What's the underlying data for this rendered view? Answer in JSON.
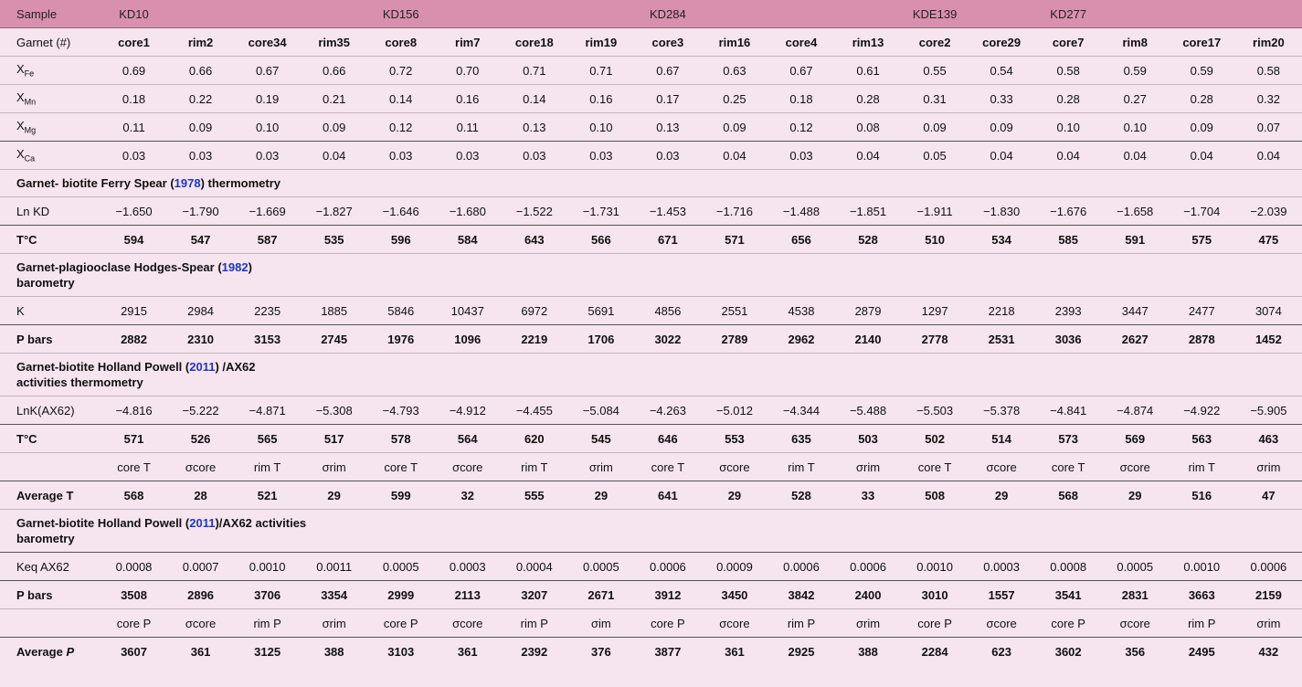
{
  "header": {
    "sample_label": "Sample",
    "samples": [
      {
        "name": "KD10",
        "col": 1
      },
      {
        "name": "KD156",
        "col": 5
      },
      {
        "name": "KD284",
        "col": 9
      },
      {
        "name": "KDE139",
        "col": 13
      },
      {
        "name": "KD277",
        "col": 15
      }
    ]
  },
  "garnet_label": "Garnet (#)",
  "garnets": [
    "core1",
    "rim2",
    "core34",
    "rim35",
    "core8",
    "rim7",
    "core18",
    "rim19",
    "core3",
    "rim16",
    "core4",
    "rim13",
    "core2",
    "core29",
    "core7",
    "rim8",
    "core17",
    "rim20"
  ],
  "comp_rows": [
    {
      "sym": "X",
      "sub": "Fe",
      "values": [
        "0.69",
        "0.66",
        "0.67",
        "0.66",
        "0.72",
        "0.70",
        "0.71",
        "0.71",
        "0.67",
        "0.63",
        "0.67",
        "0.61",
        "0.55",
        "0.54",
        "0.58",
        "0.59",
        "0.59",
        "0.58"
      ]
    },
    {
      "sym": "X",
      "sub": "Mn",
      "values": [
        "0.18",
        "0.22",
        "0.19",
        "0.21",
        "0.14",
        "0.16",
        "0.14",
        "0.16",
        "0.17",
        "0.25",
        "0.18",
        "0.28",
        "0.31",
        "0.33",
        "0.28",
        "0.27",
        "0.28",
        "0.32"
      ]
    },
    {
      "sym": "X",
      "sub": "Mg",
      "values": [
        "0.11",
        "0.09",
        "0.10",
        "0.09",
        "0.12",
        "0.11",
        "0.13",
        "0.10",
        "0.13",
        "0.09",
        "0.12",
        "0.08",
        "0.09",
        "0.09",
        "0.10",
        "0.10",
        "0.09",
        "0.07"
      ]
    },
    {
      "sym": "X",
      "sub": "Ca",
      "values": [
        "0.03",
        "0.03",
        "0.03",
        "0.04",
        "0.03",
        "0.03",
        "0.03",
        "0.03",
        "0.03",
        "0.04",
        "0.03",
        "0.04",
        "0.05",
        "0.04",
        "0.04",
        "0.04",
        "0.04",
        "0.04"
      ]
    }
  ],
  "sections": {
    "s1": {
      "pre": "Garnet- biotite Ferry Spear (",
      "ref": "1978",
      "post": ") thermometry"
    },
    "s2": {
      "pre": "Garnet-plagiooclase Hodges-Spear (",
      "ref": "1982",
      "post": ") barometry"
    },
    "s3": {
      "pre": "Garnet-biotite Holland Powell (",
      "ref": "2011",
      "post": ") /AX62 activities thermometry"
    },
    "s4": {
      "pre": "Garnet-biotite Holland Powell (",
      "ref": "2011",
      "post": ")/AX62 activities barometry"
    }
  },
  "rows": {
    "lnkd": {
      "label": "Ln KD",
      "values": [
        "−1.650",
        "−1.790",
        "−1.669",
        "−1.827",
        "−1.646",
        "−1.680",
        "−1.522",
        "−1.731",
        "−1.453",
        "−1.716",
        "−1.488",
        "−1.851",
        "−1.911",
        "−1.830",
        "−1.676",
        "−1.658",
        "−1.704",
        "−2.039"
      ]
    },
    "t1": {
      "label": "T°C",
      "values": [
        "594",
        "547",
        "587",
        "535",
        "596",
        "584",
        "643",
        "566",
        "671",
        "571",
        "656",
        "528",
        "510",
        "534",
        "585",
        "591",
        "575",
        "475"
      ]
    },
    "k": {
      "label": "K",
      "values": [
        "2915",
        "2984",
        "2235",
        "1885",
        "5846",
        "10437",
        "6972",
        "5691",
        "4856",
        "2551",
        "4538",
        "2879",
        "1297",
        "2218",
        "2393",
        "3447",
        "2477",
        "3074"
      ]
    },
    "p1": {
      "label": "P bars",
      "values": [
        "2882",
        "2310",
        "3153",
        "2745",
        "1976",
        "1096",
        "2219",
        "1706",
        "3022",
        "2789",
        "2962",
        "2140",
        "2778",
        "2531",
        "3036",
        "2627",
        "2878",
        "1452"
      ]
    },
    "lnk": {
      "label": "LnK(AX62)",
      "values": [
        "−4.816",
        "−5.222",
        "−4.871",
        "−5.308",
        "−4.793",
        "−4.912",
        "−4.455",
        "−5.084",
        "−4.263",
        "−5.012",
        "−4.344",
        "−5.488",
        "−5.503",
        "−5.378",
        "−4.841",
        "−4.874",
        "−4.922",
        "−5.905"
      ]
    },
    "t2": {
      "label": "T°C",
      "values": [
        "571",
        "526",
        "565",
        "517",
        "578",
        "564",
        "620",
        "545",
        "646",
        "553",
        "635",
        "503",
        "502",
        "514",
        "573",
        "569",
        "563",
        "463"
      ]
    },
    "thead": {
      "label": "",
      "values": [
        "core T",
        "σcore",
        "rim T",
        "σrim",
        "core T",
        "σcore",
        "rim T",
        "σrim",
        "core T",
        "σcore",
        "rim T",
        "σrim",
        "core T",
        "σcore",
        "core T",
        "σcore",
        "rim T",
        "σrim"
      ]
    },
    "avgt": {
      "label": "Average T",
      "values": [
        "568",
        "28",
        "521",
        "29",
        "599",
        "32",
        "555",
        "29",
        "641",
        "29",
        "528",
        "33",
        "508",
        "29",
        "568",
        "29",
        "516",
        "47"
      ]
    },
    "keq": {
      "label": "Keq AX62",
      "values": [
        "0.0008",
        "0.0007",
        "0.0010",
        "0.0011",
        "0.0005",
        "0.0003",
        "0.0004",
        "0.0005",
        "0.0006",
        "0.0009",
        "0.0006",
        "0.0006",
        "0.0010",
        "0.0003",
        "0.0008",
        "0.0005",
        "0.0010",
        "0.0006"
      ]
    },
    "p2": {
      "label": "P bars",
      "values": [
        "3508",
        "2896",
        "3706",
        "3354",
        "2999",
        "2113",
        "3207",
        "2671",
        "3912",
        "3450",
        "3842",
        "2400",
        "3010",
        "1557",
        "3541",
        "2831",
        "3663",
        "2159"
      ]
    },
    "phead": {
      "label": "",
      "values": [
        "core P",
        "σcore",
        "rim P",
        "σrim",
        "core P",
        "σcore",
        "rim P",
        "σim",
        "core P",
        "σcore",
        "rim P",
        "σrim",
        "core P",
        "σcore",
        "core P",
        "σcore",
        "rim P",
        "σrim"
      ]
    },
    "avgp": {
      "label": "Average",
      "label_italic": "P",
      "values": [
        "3607",
        "361",
        "3125",
        "388",
        "3103",
        "361",
        "2392",
        "376",
        "3877",
        "361",
        "2925",
        "388",
        "2284",
        "623",
        "3602",
        "356",
        "2495",
        "432"
      ]
    }
  }
}
